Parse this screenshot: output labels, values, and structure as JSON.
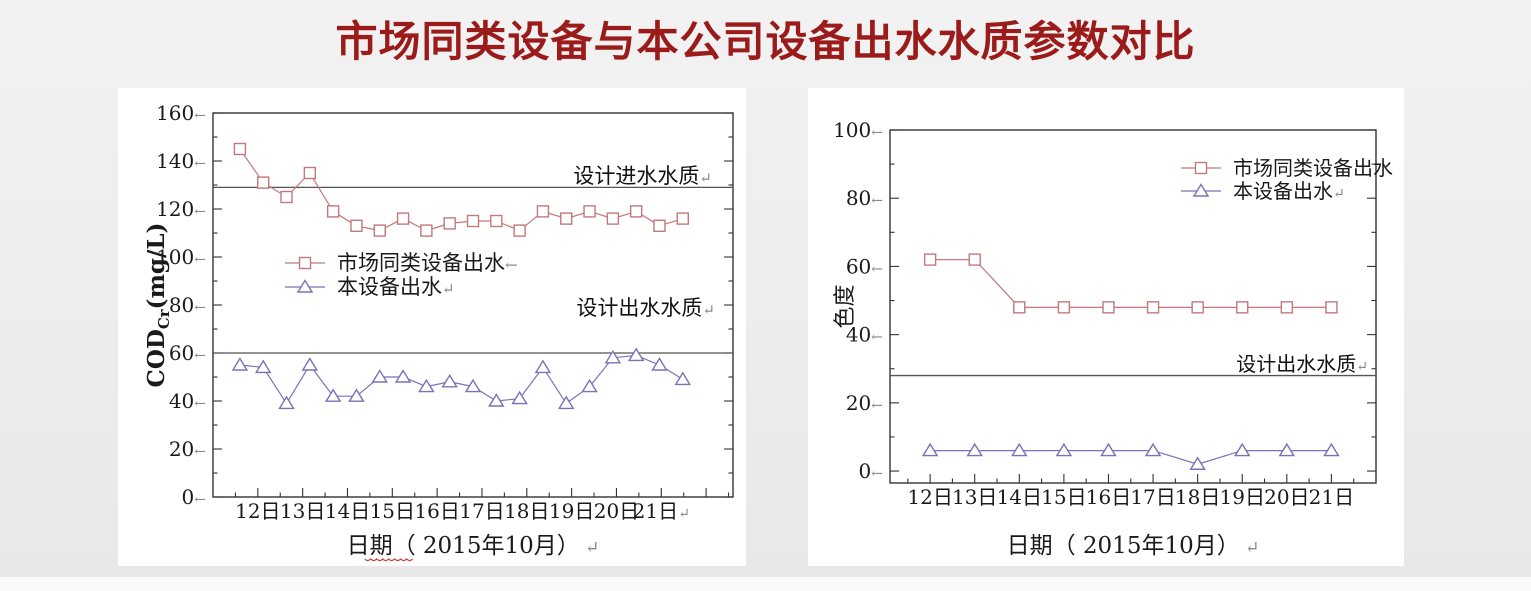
{
  "page_title": "市场同类设备与本公司设备出水水质参数对比",
  "title_color": "#9b1b1b",
  "chart_data": [
    {
      "type": "line",
      "name": "cod-comparison-chart",
      "ylabel": {
        "pre": "COD",
        "sub": "Cr",
        "post": "(mg/L)"
      },
      "xlabel": {
        "main": "日期",
        "rest": "（ 2015年10月）",
        "mark": "↵",
        "squiggle": true
      },
      "x_range": [
        11,
        22.6
      ],
      "y_range": [
        0,
        160
      ],
      "x_minor_step": 0.5,
      "y_minor_step": 10,
      "x_ticks": [
        {
          "v": 12,
          "label": "12日"
        },
        {
          "v": 13,
          "label": "13日"
        },
        {
          "v": 14,
          "label": "14日"
        },
        {
          "v": 15,
          "label": "15日"
        },
        {
          "v": 16,
          "label": "16日"
        },
        {
          "v": 17,
          "label": "17日"
        },
        {
          "v": 18,
          "label": "18日"
        },
        {
          "v": 19,
          "label": "19日"
        },
        {
          "v": 20,
          "label": "20日"
        },
        {
          "v": 21,
          "label": "21日↵"
        },
        {
          "v": 22,
          "label": ""
        }
      ],
      "y_ticks": [
        {
          "v": 0,
          "label": "0←"
        },
        {
          "v": 20,
          "label": "20←"
        },
        {
          "v": 40,
          "label": "40←"
        },
        {
          "v": 60,
          "label": "60←"
        },
        {
          "v": 80,
          "label": "80←"
        },
        {
          "v": 100,
          "label": "100←"
        },
        {
          "v": 120,
          "label": "120←"
        },
        {
          "v": 140,
          "label": "140←"
        },
        {
          "v": 160,
          "label": "160←"
        }
      ],
      "ref_lines": [
        {
          "value": 129,
          "label": "设计进水水质↵"
        },
        {
          "value": 60,
          "label": "设计出水水质↵"
        }
      ],
      "series": [
        {
          "name": "市场同类设备出水←",
          "marker": "square",
          "color": "#c4777c",
          "x_start": 11.6,
          "x_step": 0.52,
          "values": [
            145,
            131,
            125,
            135,
            119,
            113,
            111,
            116,
            111,
            114,
            115,
            115,
            111,
            119,
            116,
            119,
            116,
            119,
            113,
            116
          ]
        },
        {
          "name": "本设备出水↵",
          "marker": "triangle",
          "color": "#7673b8",
          "x_start": 11.6,
          "x_step": 0.52,
          "values": [
            55,
            54,
            39,
            55,
            42,
            42,
            50,
            50,
            46,
            48,
            46,
            40,
            41,
            54,
            39,
            46,
            58,
            59,
            55,
            49
          ]
        }
      ]
    },
    {
      "type": "line",
      "name": "chroma-comparison-chart",
      "ylabel": {
        "pre": "色度",
        "sub": "",
        "post": ""
      },
      "xlabel": {
        "main": "日期",
        "rest": "（ 2015年10月）",
        "mark": "↵",
        "squiggle": false
      },
      "x_range": [
        11.1,
        22
      ],
      "y_range": [
        -3.5,
        100
      ],
      "x_minor_step": 0.5,
      "y_minor_step": 10,
      "x_ticks": [
        {
          "v": 12,
          "label": "12日"
        },
        {
          "v": 13,
          "label": "13日"
        },
        {
          "v": 14,
          "label": "14日"
        },
        {
          "v": 15,
          "label": "15日"
        },
        {
          "v": 16,
          "label": "16日"
        },
        {
          "v": 17,
          "label": "17日"
        },
        {
          "v": 18,
          "label": "18日"
        },
        {
          "v": 19,
          "label": "19日"
        },
        {
          "v": 20,
          "label": "20日"
        },
        {
          "v": 21,
          "label": "21日"
        }
      ],
      "y_ticks": [
        {
          "v": 0,
          "label": "0←"
        },
        {
          "v": 20,
          "label": "20←"
        },
        {
          "v": 40,
          "label": "40←"
        },
        {
          "v": 60,
          "label": "60←"
        },
        {
          "v": 80,
          "label": "80←"
        },
        {
          "v": 100,
          "label": "100←"
        }
      ],
      "ref_lines": [
        {
          "value": 28,
          "label": "设计出水水质↵"
        }
      ],
      "series": [
        {
          "name": "市场同类设备出水",
          "marker": "square",
          "color": "#c4777c",
          "x_start": 12,
          "x_step": 1,
          "values": [
            62,
            62,
            48,
            48,
            48,
            48,
            48,
            48,
            48,
            48
          ]
        },
        {
          "name": "本设备出水↵",
          "marker": "triangle",
          "color": "#7673b8",
          "x_start": 12,
          "x_step": 1,
          "values": [
            6,
            6,
            6,
            6,
            6,
            6,
            2,
            6,
            6,
            6
          ]
        }
      ]
    }
  ]
}
